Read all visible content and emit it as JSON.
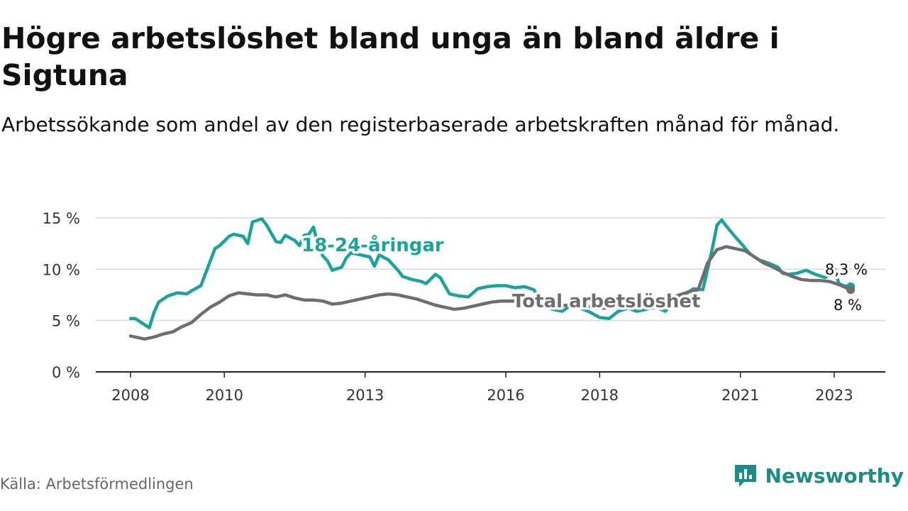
{
  "title": "Högre arbetslöshet bland unga än bland äldre i Sigtuna",
  "subtitle": "Arbetssökande som andel av den registerbaserade arbetskraften månad för månad.",
  "source": "Källa: Arbetsförmedlingen",
  "brand": {
    "name": "Newsworthy",
    "icon": "bar-chart-icon",
    "color": "#1a8e86"
  },
  "chart_data": {
    "type": "line",
    "title": "Högre arbetslöshet bland unga än bland äldre i Sigtuna",
    "xlabel": "",
    "ylabel": "",
    "xlim": [
      2007.5,
      2024.1
    ],
    "ylim": [
      0,
      15
    ],
    "grid": true,
    "y_ticks": [
      0,
      5,
      10,
      15
    ],
    "y_tick_labels": [
      "0 %",
      "5 %",
      "10 %",
      "15 %"
    ],
    "x_ticks": [
      2008,
      2010,
      2013,
      2016,
      2018,
      2021,
      2023
    ],
    "x_tick_labels": [
      "2008",
      "2010",
      "2013",
      "2016",
      "2018",
      "2021",
      "2023"
    ],
    "series": [
      {
        "name": "18-24-åringar",
        "label": "18-24-åringar",
        "color": "#1aa39a",
        "end_label": "8,3 %",
        "x": [
          2008.0,
          2008.1,
          2008.3,
          2008.4,
          2008.5,
          2008.6,
          2008.8,
          2009.0,
          2009.2,
          2009.3,
          2009.5,
          2009.6,
          2009.8,
          2009.9,
          2010.1,
          2010.2,
          2010.4,
          2010.5,
          2010.6,
          2010.8,
          2010.9,
          2011.1,
          2011.2,
          2011.3,
          2011.5,
          2011.6,
          2011.7,
          2011.8,
          2011.9,
          2012.0,
          2012.1,
          2012.2,
          2012.3,
          2012.5,
          2012.6,
          2012.7,
          2012.9,
          2013.1,
          2013.2,
          2013.3,
          2013.5,
          2013.7,
          2013.8,
          2014.0,
          2014.2,
          2014.3,
          2014.5,
          2014.6,
          2014.8,
          2015.0,
          2015.2,
          2015.4,
          2015.6,
          2015.8,
          2016.0,
          2016.2,
          2016.4,
          2016.6,
          2016.8,
          2017.0,
          2017.2,
          2017.4,
          2017.6,
          2017.8,
          2018.0,
          2018.2,
          2018.4,
          2018.6,
          2018.8,
          2019.0,
          2019.2,
          2019.4,
          2019.6,
          2019.8,
          2020.0,
          2020.2,
          2020.4,
          2020.5,
          2020.6,
          2020.7,
          2020.9,
          2021.0,
          2021.2,
          2021.4,
          2021.6,
          2021.8,
          2021.9,
          2022.0,
          2022.2,
          2022.4,
          2022.6,
          2022.8,
          2022.9,
          2023.0,
          2023.1,
          2023.2,
          2023.35
        ],
        "values": [
          5.2,
          5.2,
          4.6,
          4.3,
          5.8,
          6.8,
          7.4,
          7.7,
          7.6,
          7.9,
          8.4,
          9.6,
          12.0,
          12.3,
          13.2,
          13.4,
          13.2,
          12.5,
          14.6,
          14.9,
          14.3,
          12.7,
          12.6,
          13.3,
          12.8,
          12.3,
          13.3,
          13.4,
          14.1,
          12.3,
          11.3,
          10.8,
          9.9,
          10.2,
          11.1,
          11.6,
          11.4,
          11.2,
          10.3,
          11.4,
          10.9,
          9.9,
          9.3,
          9.0,
          8.8,
          8.6,
          9.5,
          9.2,
          7.6,
          7.4,
          7.3,
          8.1,
          8.3,
          8.4,
          8.4,
          8.2,
          8.3,
          8.0,
          6.4,
          6.1,
          5.9,
          6.5,
          6.2,
          5.8,
          5.3,
          5.2,
          5.9,
          6.2,
          5.9,
          6.1,
          6.3,
          5.9,
          6.9,
          7.5,
          8.1,
          8.0,
          12.0,
          14.3,
          14.8,
          14.2,
          13.1,
          12.6,
          11.5,
          10.9,
          10.6,
          10.2,
          9.6,
          9.5,
          9.6,
          9.9,
          9.5,
          9.2,
          9.4,
          10.1,
          8.6,
          8.4,
          8.3
        ]
      },
      {
        "name": "Total arbetslöshet",
        "label": "Total arbetslöshet",
        "color": "#6e6d72",
        "end_label": "8 %",
        "x": [
          2008.0,
          2008.1,
          2008.3,
          2008.5,
          2008.7,
          2008.9,
          2009.1,
          2009.3,
          2009.5,
          2009.7,
          2009.9,
          2010.1,
          2010.3,
          2010.5,
          2010.7,
          2010.9,
          2011.1,
          2011.3,
          2011.5,
          2011.7,
          2011.9,
          2012.1,
          2012.3,
          2012.5,
          2012.7,
          2012.9,
          2013.1,
          2013.3,
          2013.5,
          2013.7,
          2013.9,
          2014.1,
          2014.3,
          2014.5,
          2014.7,
          2014.9,
          2015.1,
          2015.3,
          2015.5,
          2015.7,
          2015.9,
          2016.1,
          2016.3,
          2016.5,
          2016.7,
          2016.9,
          2017.1,
          2017.3,
          2017.5,
          2017.7,
          2017.9,
          2018.1,
          2018.3,
          2018.5,
          2018.7,
          2018.9,
          2019.1,
          2019.3,
          2019.5,
          2019.7,
          2019.9,
          2020.1,
          2020.3,
          2020.5,
          2020.7,
          2020.9,
          2021.1,
          2021.3,
          2021.5,
          2021.7,
          2021.9,
          2022.1,
          2022.3,
          2022.5,
          2022.7,
          2022.9,
          2023.1,
          2023.35
        ],
        "values": [
          3.5,
          3.4,
          3.2,
          3.4,
          3.7,
          3.9,
          4.4,
          4.8,
          5.6,
          6.3,
          6.8,
          7.4,
          7.7,
          7.6,
          7.5,
          7.5,
          7.3,
          7.5,
          7.2,
          7.0,
          7.0,
          6.9,
          6.6,
          6.7,
          6.9,
          7.1,
          7.3,
          7.5,
          7.6,
          7.5,
          7.3,
          7.1,
          6.8,
          6.5,
          6.3,
          6.1,
          6.2,
          6.4,
          6.6,
          6.8,
          6.9,
          6.9,
          6.9,
          6.8,
          6.6,
          6.5,
          6.4,
          6.5,
          6.5,
          6.4,
          6.3,
          6.2,
          6.3,
          6.4,
          6.5,
          6.6,
          6.8,
          6.9,
          7.2,
          7.5,
          7.8,
          8.0,
          10.6,
          11.9,
          12.2,
          12.0,
          11.8,
          11.2,
          10.6,
          10.2,
          9.7,
          9.3,
          9.0,
          8.9,
          8.9,
          8.8,
          8.5,
          8.0
        ]
      }
    ]
  }
}
